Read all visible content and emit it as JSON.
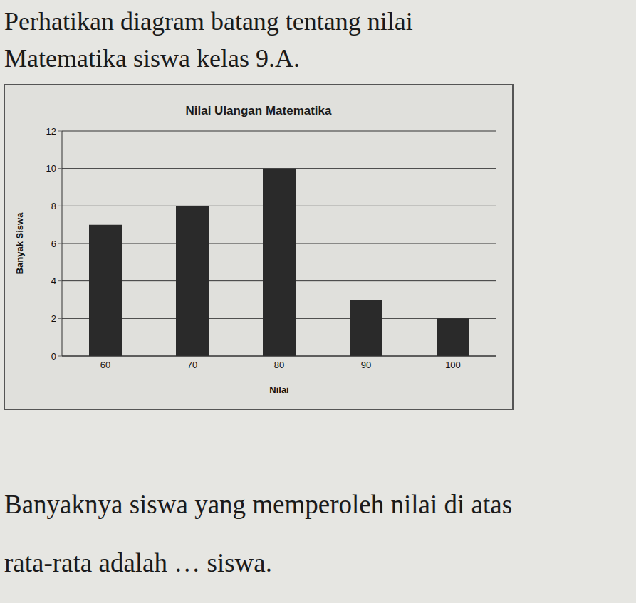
{
  "chart_data": {
    "type": "bar",
    "title": "Nilai Ulangan Matematika",
    "x_label": "Nilai",
    "y_label": "Banyak Siswa",
    "categories": [
      "60",
      "70",
      "80",
      "90",
      "100"
    ],
    "values": [
      7,
      8,
      10,
      3,
      2
    ],
    "color": "#2a2a2a",
    "ylim": [
      0,
      12
    ],
    "yticks": [
      0,
      2,
      4,
      6,
      8,
      10,
      12
    ],
    "grid": true
  },
  "text": {
    "intro": [
      "Perhatikan diagram batang tentang nilai",
      "Matematika siswa kelas 9.A."
    ],
    "question": [
      "Banyaknya siswa yang memperoleh nilai di atas",
      "rata-rata adalah … siswa."
    ]
  }
}
